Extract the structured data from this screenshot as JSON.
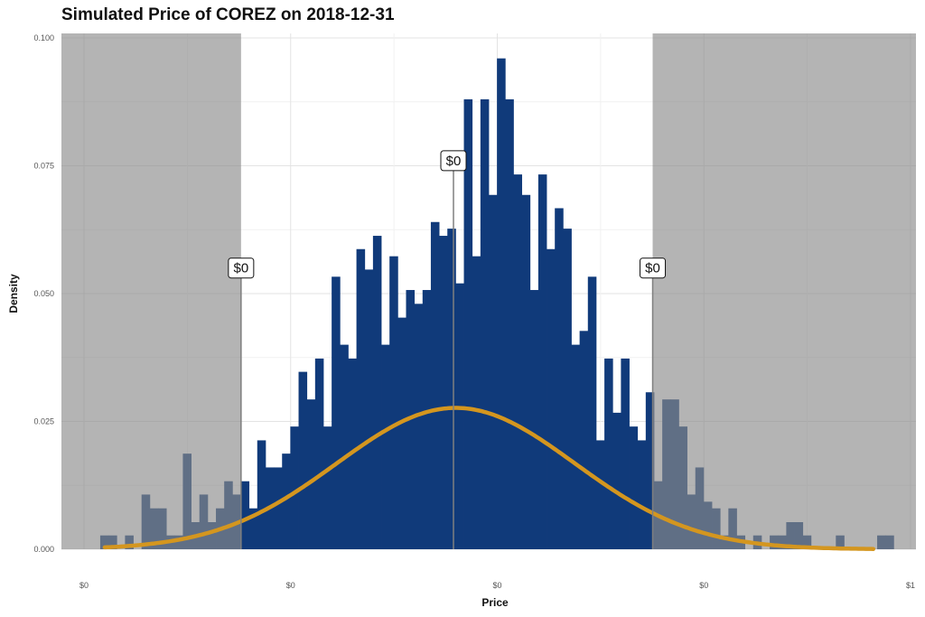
{
  "chart_data": {
    "type": "histogram",
    "title": "Simulated Price of COREZ on 2018-12-31",
    "xlabel": "Price",
    "ylabel": "Density",
    "xlim": [
      0,
      1
    ],
    "ylim": [
      0,
      0.1
    ],
    "x_ticks": [
      0,
      0.25,
      0.5,
      0.75,
      1.0
    ],
    "x_tick_labels": [
      "$0",
      "$0",
      "$0",
      "$0",
      "$1"
    ],
    "y_ticks": [
      0,
      0.025,
      0.05,
      0.075,
      0.1
    ],
    "y_tick_labels": [
      "0.000",
      "0.025",
      "0.050",
      "0.075",
      "0.100"
    ],
    "grid": true,
    "bins": {
      "start": 0.0196,
      "width": 0.01,
      "density": [
        0.0027,
        0.0027,
        0,
        0.0027,
        0,
        0.0107,
        0.008,
        0.008,
        0.0027,
        0.0027,
        0.0187,
        0.0053,
        0.0107,
        0.0053,
        0.008,
        0.0133,
        0.0107,
        0.0133,
        0.008,
        0.0213,
        0.016,
        0.016,
        0.0187,
        0.024,
        0.0347,
        0.0293,
        0.0373,
        0.024,
        0.0533,
        0.04,
        0.0373,
        0.0587,
        0.0547,
        0.0613,
        0.04,
        0.0573,
        0.0453,
        0.0507,
        0.048,
        0.0507,
        0.064,
        0.0613,
        0.0627,
        0.052,
        0.088,
        0.0573,
        0.088,
        0.0693,
        0.096,
        0.088,
        0.0733,
        0.0693,
        0.0507,
        0.0733,
        0.0587,
        0.0667,
        0.0627,
        0.04,
        0.0427,
        0.0533,
        0.0213,
        0.0373,
        0.0267,
        0.0373,
        0.024,
        0.0213,
        0.0307,
        0.0133,
        0.0293,
        0.0293,
        0.024,
        0.0107,
        0.016,
        0.0093,
        0.008,
        0.0027,
        0.008,
        0.0027,
        0,
        0.0027,
        0,
        0.0027,
        0.0027,
        0.0053,
        0.0053,
        0.0027,
        0,
        0,
        0,
        0.0027,
        0,
        0,
        0,
        0,
        0.0027,
        0.0027
      ]
    },
    "normal_fit": {
      "mean": 0.4498,
      "sd": 0.1443,
      "x_range": [
        0.025,
        0.955
      ],
      "color": "#D4961F"
    },
    "bar_color": "#103A7A",
    "shaded_tails": {
      "left": [
        0,
        0.19
      ],
      "right": [
        0.688,
        1.0
      ],
      "color": "#8C8C8C"
    },
    "annotations": [
      {
        "label": "$0",
        "x": 0.19,
        "y": 0.055
      },
      {
        "label": "$0",
        "x": 0.447,
        "y": 0.076
      },
      {
        "label": "$0",
        "x": 0.688,
        "y": 0.055
      }
    ]
  }
}
